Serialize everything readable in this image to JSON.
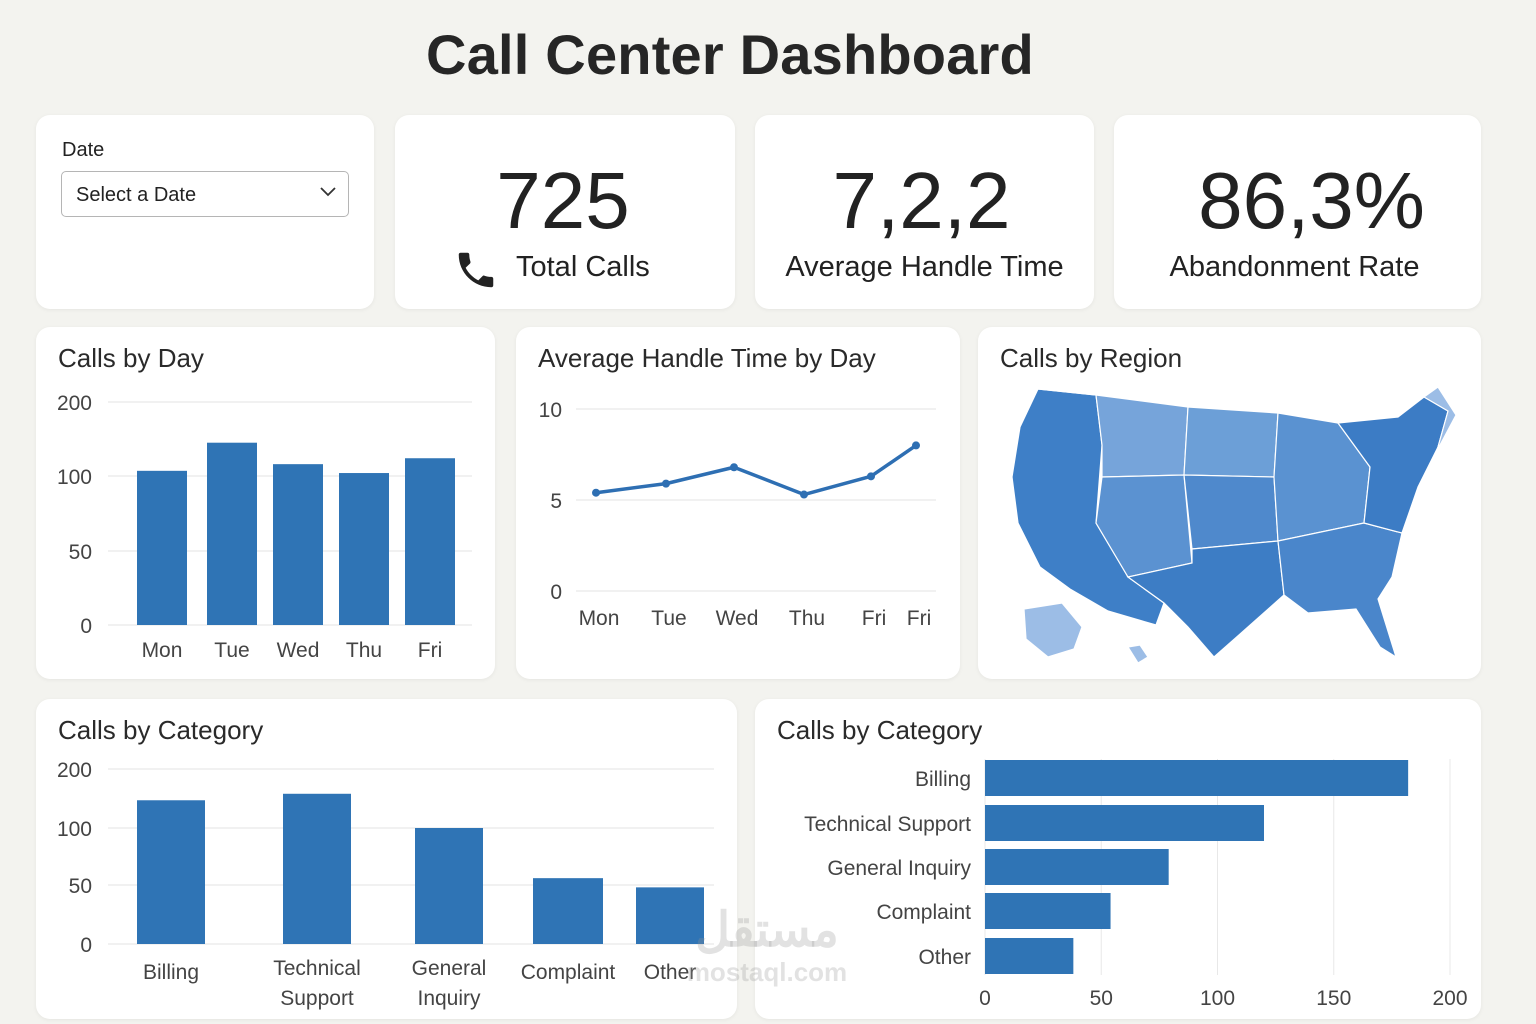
{
  "page": {
    "title": "Call Center Dashboard"
  },
  "filter": {
    "label": "Date",
    "placeholder": "Select a Date"
  },
  "kpis": {
    "total_calls": {
      "value": "725",
      "label": "Total Calls",
      "icon": "phone-icon"
    },
    "avg_handle_time": {
      "value": "7,2,2",
      "label": "Average Handle Time"
    },
    "abandonment_rate": {
      "value": "86,3%",
      "label": "Abandonment Rate"
    }
  },
  "colors": {
    "bar": "#2f74b5",
    "line": "#2e6fb3",
    "map_dark": "#3b7cc4",
    "map_light": "#9cbde6"
  },
  "map": {
    "title": "Calls by Region",
    "icon": "us-map-icon"
  },
  "watermark": {
    "arabic": "مستقل",
    "latin": "mostaql.com"
  },
  "chart_data": [
    {
      "type": "bar",
      "title": "Calls by Day",
      "categories": [
        "Mon",
        "Tue",
        "Wed",
        "Thu",
        "Fri"
      ],
      "values": [
        107,
        145,
        116,
        104,
        124
      ],
      "yticks": [
        "0",
        "50",
        "100",
        "200"
      ]
    },
    {
      "type": "line",
      "title": "Average Handle Time by Day",
      "categories": [
        "Mon",
        "Tue",
        "Wed",
        "Thu",
        "Fri",
        "Fri"
      ],
      "values": [
        5.4,
        5.9,
        6.8,
        5.3,
        6.3,
        8.0
      ],
      "ylim": [
        0,
        10
      ],
      "yticks": [
        "0",
        "5",
        "10"
      ]
    },
    {
      "type": "bar",
      "title": "Calls by Category",
      "categories": [
        "Billing",
        "Technical Support",
        "General Inquiry",
        "Complaint",
        "Other"
      ],
      "values": [
        147,
        158,
        100,
        56,
        48
      ],
      "yticks": [
        "0",
        "50",
        "100",
        "200"
      ]
    },
    {
      "type": "bar",
      "orientation": "horizontal",
      "title": "Calls by Category",
      "categories": [
        "Billing",
        "Technical Support",
        "General Inquiry",
        "Complaint",
        "Other"
      ],
      "values": [
        182,
        120,
        79,
        54,
        38
      ],
      "xlim": [
        0,
        200
      ],
      "xticks": [
        "0",
        "50",
        "100",
        "150",
        "200"
      ]
    }
  ]
}
